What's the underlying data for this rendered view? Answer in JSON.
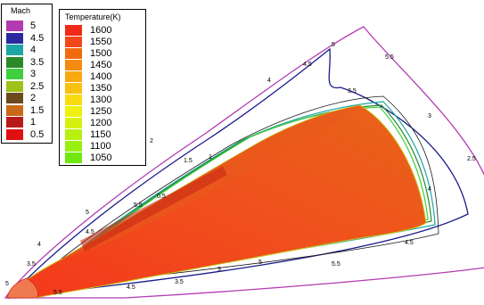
{
  "mach_legend": {
    "title": "Mach",
    "entries": [
      {
        "label": "5",
        "color": "#b23bb2"
      },
      {
        "label": "4.5",
        "color": "#2a2aa0"
      },
      {
        "label": "4",
        "color": "#1ea6a6"
      },
      {
        "label": "3.5",
        "color": "#2a8a2a"
      },
      {
        "label": "3",
        "color": "#3fcf3f"
      },
      {
        "label": "2.5",
        "color": "#9ec21a"
      },
      {
        "label": "2",
        "color": "#6b4a1e"
      },
      {
        "label": "1.5",
        "color": "#c86a1a"
      },
      {
        "label": "1",
        "color": "#b81a1a"
      },
      {
        "label": "0.5",
        "color": "#e01010"
      }
    ]
  },
  "temperature_legend": {
    "title": "Temperature(K)",
    "entries": [
      {
        "label": "1600",
        "color": "#ee2a18"
      },
      {
        "label": "1550",
        "color": "#f04818"
      },
      {
        "label": "1500",
        "color": "#f26a10"
      },
      {
        "label": "1450",
        "color": "#f58a10"
      },
      {
        "label": "1400",
        "color": "#f8a810"
      },
      {
        "label": "1350",
        "color": "#f8c010"
      },
      {
        "label": "1300",
        "color": "#f8dc10"
      },
      {
        "label": "1250",
        "color": "#eef010"
      },
      {
        "label": "1200",
        "color": "#d8f010"
      },
      {
        "label": "1150",
        "color": "#b8f010"
      },
      {
        "label": "1100",
        "color": "#98f010"
      },
      {
        "label": "1050",
        "color": "#70e810"
      }
    ]
  },
  "contour_labels": [
    "5",
    "5.5",
    "4.5",
    "4",
    "3.5",
    "3",
    "2.5",
    "2",
    "1.5",
    "1",
    "0.5",
    "5",
    "5.5",
    "4.5",
    "4",
    "3.5",
    "3",
    "5",
    "5.5",
    "4.5",
    "4",
    "3.5",
    "4.5",
    "5.5",
    "5"
  ]
}
